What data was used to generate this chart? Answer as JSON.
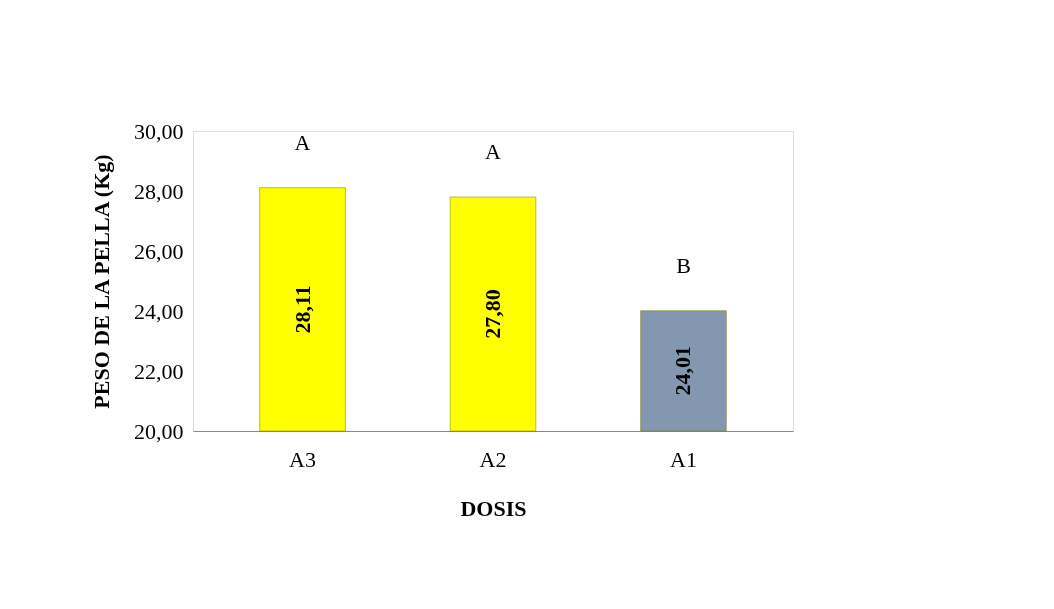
{
  "chart_data": {
    "type": "bar",
    "xlabel": "DOSIS",
    "ylabel": "PESO DE LA PELLA (Kg)",
    "categories": [
      "A3",
      "A2",
      "A1"
    ],
    "values": [
      28.11,
      27.8,
      24.01
    ],
    "colors": [
      "#ffff00",
      "#ffff00",
      "#8497b0"
    ],
    "value_labels": [
      "28,11",
      "27,80",
      "24,01"
    ],
    "ylim": [
      20,
      30
    ],
    "yticks": [
      {
        "value": 20,
        "label": "20,00"
      },
      {
        "value": 22,
        "label": "22,00"
      },
      {
        "value": 24,
        "label": "24,00"
      },
      {
        "value": 26,
        "label": "26,00"
      },
      {
        "value": 28,
        "label": "28,00"
      },
      {
        "value": 30,
        "label": "30,00"
      }
    ],
    "annotations": [
      {
        "text": "A",
        "x": "A3",
        "y": 28.11
      },
      {
        "text": "A",
        "x": "A2",
        "y": 27.8
      },
      {
        "text": "B",
        "x": "A1",
        "y": 24.01
      }
    ],
    "grid": false
  }
}
